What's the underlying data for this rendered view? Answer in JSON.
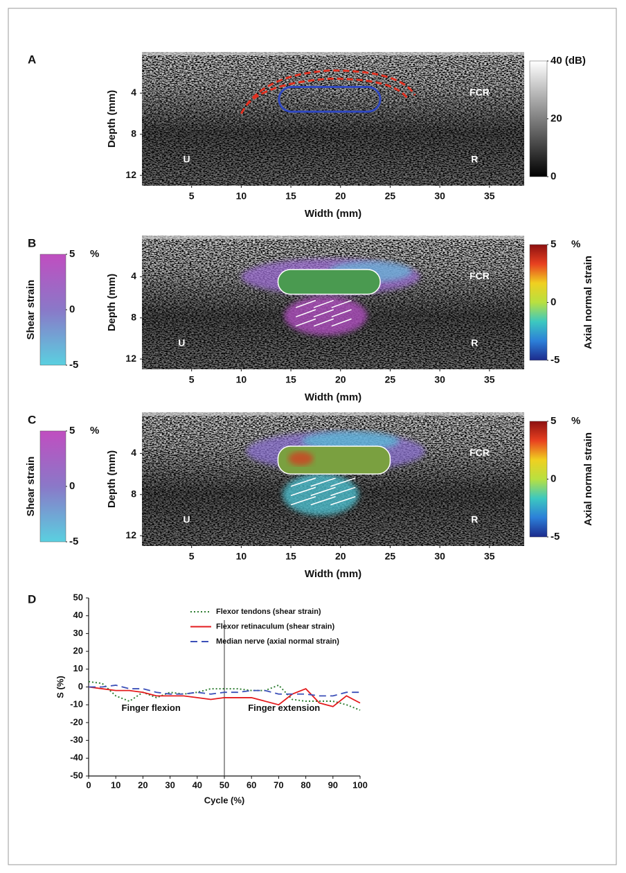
{
  "chart_data": [
    {
      "type": "image",
      "panel": "A",
      "xlabel": "Width (mm)",
      "ylabel": "Depth (mm)",
      "xlim": [
        0,
        38.5
      ],
      "ylim": [
        0,
        13
      ],
      "yreverse": true,
      "xticks": [
        5,
        10,
        15,
        20,
        25,
        30,
        35
      ],
      "yticks": [
        4,
        8,
        12
      ],
      "annotations": [
        {
          "text": "FCR",
          "x": 34,
          "y": 4
        },
        {
          "text": "U",
          "x": 4.5,
          "y": 10.5
        },
        {
          "text": "R",
          "x": 33.5,
          "y": 10.5
        }
      ],
      "colorbars": [
        {
          "side": "right",
          "lim": [
            0,
            40
          ],
          "ticks": [
            {
              "value": 40,
              "label": "40 (dB)"
            },
            20,
            0
          ],
          "colors": [
            "#000000",
            "#ffffff"
          ]
        }
      ]
    },
    {
      "type": "image",
      "panel": "B",
      "xlabel": "Width (mm)",
      "ylabel": "Depth (mm)",
      "xlim": [
        0,
        38.5
      ],
      "ylim": [
        0,
        13
      ],
      "yreverse": true,
      "xticks": [
        5,
        10,
        15,
        20,
        25,
        30,
        35
      ],
      "yticks": [
        4,
        8,
        12
      ],
      "annotations": [
        {
          "text": "FCR",
          "x": 34,
          "y": 4
        },
        {
          "text": "U",
          "x": 4,
          "y": 10.5
        },
        {
          "text": "R",
          "x": 33.5,
          "y": 10.5
        }
      ],
      "colorbars": [
        {
          "side": "left",
          "label": "Shear strain",
          "unit": "%",
          "lim": [
            -5,
            5
          ],
          "ticks": [
            5,
            0,
            -5
          ],
          "colors": [
            "#5ad0e0",
            "#8a78c8",
            "#c04ec0"
          ]
        },
        {
          "side": "right",
          "label": "Axial normal strain",
          "unit": "%",
          "lim": [
            -5,
            5
          ],
          "ticks": [
            5,
            0,
            -5
          ],
          "colors": [
            "#1c2a8c",
            "#2c7fd8",
            "#3cc8c0",
            "#b8e040",
            "#f0d020",
            "#e84020",
            "#8c1010"
          ]
        }
      ]
    },
    {
      "type": "image",
      "panel": "C",
      "xlabel": "Width (mm)",
      "ylabel": "Depth (mm)",
      "xlim": [
        0,
        38.5
      ],
      "ylim": [
        0,
        13
      ],
      "yreverse": true,
      "xticks": [
        5,
        10,
        15,
        20,
        25,
        30,
        35
      ],
      "yticks": [
        4,
        8,
        12
      ],
      "annotations": [
        {
          "text": "FCR",
          "x": 34,
          "y": 4
        },
        {
          "text": "U",
          "x": 4.5,
          "y": 10.5
        },
        {
          "text": "R",
          "x": 33.5,
          "y": 10.5
        }
      ],
      "colorbars": [
        {
          "side": "left",
          "label": "Shear strain",
          "unit": "%",
          "lim": [
            -5,
            5
          ],
          "ticks": [
            5,
            0,
            -5
          ],
          "colors": [
            "#5ad0e0",
            "#8a78c8",
            "#c04ec0"
          ]
        },
        {
          "side": "right",
          "label": "Axial normal strain",
          "unit": "%",
          "lim": [
            -5,
            5
          ],
          "ticks": [
            5,
            0,
            -5
          ],
          "colors": [
            "#1c2a8c",
            "#2c7fd8",
            "#3cc8c0",
            "#b8e040",
            "#f0d020",
            "#e84020",
            "#8c1010"
          ]
        }
      ]
    },
    {
      "type": "line",
      "panel": "D",
      "xlabel": "Cycle (%)",
      "ylabel": "S (%)",
      "xlim": [
        0,
        100
      ],
      "ylim": [
        -50,
        50
      ],
      "xticks": [
        0,
        10,
        20,
        30,
        40,
        50,
        60,
        70,
        80,
        90,
        100
      ],
      "yticks": [
        -50,
        -40,
        -30,
        -20,
        -10,
        0,
        10,
        20,
        30,
        40,
        50
      ],
      "divider_x": 50,
      "annotations": [
        {
          "text": "Finger flexion",
          "x": 23,
          "y": -12
        },
        {
          "text": "Finger extension",
          "x": 72,
          "y": -12
        }
      ],
      "x": [
        0,
        5,
        10,
        15,
        20,
        25,
        30,
        35,
        40,
        45,
        50,
        55,
        60,
        65,
        70,
        75,
        80,
        85,
        90,
        95,
        100
      ],
      "series": [
        {
          "name": "Flexor tendons (shear strain)",
          "color": "#2e7d32",
          "style": "dotted",
          "values": [
            3,
            2,
            -5,
            -8,
            -3,
            -6,
            -3,
            -4,
            -3,
            -1,
            -1,
            -1,
            -2,
            -2,
            1,
            -7,
            -8,
            -8,
            -8,
            -10,
            -13
          ]
        },
        {
          "name": "Flexor retinaculum (shear strain)",
          "color": "#e31a1c",
          "style": "solid",
          "values": [
            0,
            -1,
            -2,
            -2,
            -3,
            -5,
            -5,
            -5,
            -6,
            -7,
            -6,
            -6,
            -6,
            -8,
            -10,
            -4,
            -1,
            -9,
            -11,
            -5,
            -9
          ]
        },
        {
          "name": "Median nerve (axial normal strain)",
          "color": "#3b4fb8",
          "style": "dashed",
          "values": [
            0,
            0,
            1,
            -1,
            -1,
            -3,
            -4,
            -4,
            -3,
            -4,
            -3,
            -3,
            -2,
            -2,
            -4,
            -4,
            -4,
            -5,
            -5,
            -3,
            -3
          ]
        }
      ]
    }
  ]
}
